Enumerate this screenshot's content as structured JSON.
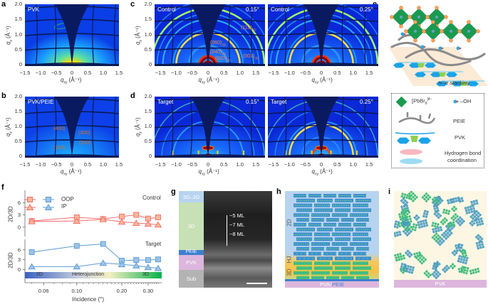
{
  "panels": {
    "a": {
      "label": "a",
      "tag": "PVK"
    },
    "b": {
      "label": "b",
      "tag": "PVK/PEIE",
      "peaks": [
        "(400)",
        "(300)",
        "(200)",
        "(100)"
      ]
    },
    "c": {
      "label": "c",
      "left": {
        "tag": "Control",
        "angle": "0.15°"
      },
      "right": {
        "tag": "Control",
        "angle": "0.25°"
      },
      "peaks": [
        "(110)",
        "3D",
        "(060)",
        "2D",
        "(040)",
        "2D",
        "(020)",
        "2D",
        "(001)",
        "3D"
      ]
    },
    "d": {
      "label": "d",
      "left": {
        "tag": "Target",
        "angle": "0.15°"
      },
      "right": {
        "tag": "Target",
        "angle": "0.25°"
      }
    },
    "e": {
      "label": "e",
      "stacking": "π–π stacking",
      "legend": {
        "pbbr": "[PbBr",
        "pbbr_sub": "6",
        "pbbr_sup": "]4−",
        "oh": "–OH",
        "peie": "PEIE",
        "pvk": "PVK",
        "hbond_1": "Hydrogen bond",
        "hbond_2": "coordination"
      }
    },
    "f": {
      "label": "f"
    },
    "g": {
      "label": "g",
      "layers": [
        "3D–2D",
        "3D",
        "PEIE",
        "PVK",
        "Sub"
      ],
      "ml": [
        "~5 ML",
        "~7 ML",
        "~8 ML"
      ]
    },
    "h": {
      "label": "h",
      "regions": [
        "2D",
        "HJ",
        "3D"
      ],
      "base_1": "PVK/",
      "base_2": "PEIE"
    },
    "i": {
      "label": "i",
      "base": "PVK"
    }
  },
  "giwaxs_axes": {
    "xticks": [
      "−1.5",
      "−1.0",
      "−0.5",
      "0",
      "0.5",
      "1.0",
      "1.5"
    ],
    "yticks": [
      "0",
      "0.5",
      "1.0",
      "1.5",
      "2.0"
    ],
    "xlabel": "q",
    "xlabel_sub": "xy",
    "ylabel": "q",
    "ylabel_sub": "z",
    "unit": "(Å⁻¹)"
  },
  "colors": {
    "control": "#f36b6b",
    "control_fill": "#f9b896",
    "target": "#5b9bd5",
    "target_fill": "#9cc3e6",
    "pvk": "#dcb6dc",
    "peie": "#3d7fd0",
    "layer_2d": "#b8d3ef",
    "layer_3d": "#c7e0b5",
    "sub": "#b3b3b3"
  },
  "chart_data": {
    "type": "line",
    "xlabel": "Incidence (°)",
    "xscale": "log",
    "xlim": [
      0.045,
      0.37
    ],
    "xticks": [
      "0.06",
      "0.10",
      "0.20",
      "0.30"
    ],
    "xtick_values": [
      0.06,
      0.1,
      0.2,
      0.3
    ],
    "ylabel": "2D/3D",
    "yticks": [
      "0",
      "3",
      "6"
    ],
    "x": [
      0.05,
      0.1,
      0.15,
      0.2,
      0.25,
      0.3,
      0.35
    ],
    "gradient_bar": [
      "2D",
      "Heterojunction",
      "3D"
    ],
    "legend": [
      "OOP",
      "IP"
    ],
    "subplots": [
      {
        "title": "Control",
        "ylim": [
          -2.3,
          9
        ],
        "color": "#f36b6b",
        "series": [
          {
            "name": "OOP",
            "marker": "square",
            "values": [
              1.5,
              2.4,
              2.0,
              2.6,
              3.0,
              2.1,
              2.4
            ]
          },
          {
            "name": "IP",
            "marker": "triangle",
            "values": [
              1.4,
              1.5,
              1.9,
              1.3,
              1.0,
              0.8,
              0.6
            ]
          }
        ]
      },
      {
        "title": "Target",
        "ylim": [
          -4,
          9.2
        ],
        "color": "#5b9bd5",
        "series": [
          {
            "name": "OOP",
            "marker": "square",
            "values": [
              5.3,
              7.2,
              7.8,
              2.7,
              2.9,
              2.9,
              3.1
            ]
          },
          {
            "name": "IP",
            "marker": "triangle",
            "values": [
              0.9,
              0.9,
              2.0,
              1.6,
              1.2,
              0.7,
              0.4
            ]
          }
        ]
      }
    ]
  }
}
